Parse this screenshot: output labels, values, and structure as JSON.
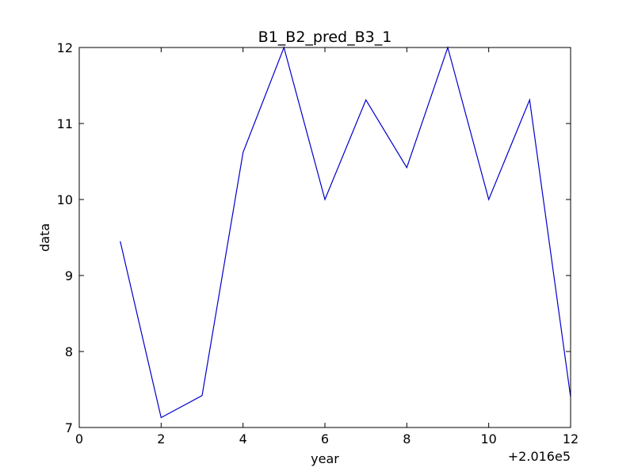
{
  "chart_data": {
    "type": "line",
    "title": "B1_B2_pred_B3_1",
    "xlabel": "year",
    "ylabel": "data",
    "x_offset_label": "+2.016e5",
    "xlim": [
      0,
      12
    ],
    "ylim": [
      7,
      12
    ],
    "xticks": [
      "0",
      "2",
      "4",
      "6",
      "8",
      "10",
      "12"
    ],
    "yticks": [
      "7",
      "8",
      "9",
      "10",
      "11",
      "12"
    ],
    "grid": false,
    "series": [
      {
        "color": "#0000cc",
        "x": [
          1,
          2,
          3,
          4,
          5,
          6,
          7,
          8,
          9,
          10,
          11,
          12
        ],
        "y": [
          9.45,
          7.13,
          7.42,
          10.62,
          12.0,
          10.0,
          11.31,
          10.42,
          12.0,
          10.0,
          11.31,
          7.4
        ]
      }
    ]
  }
}
